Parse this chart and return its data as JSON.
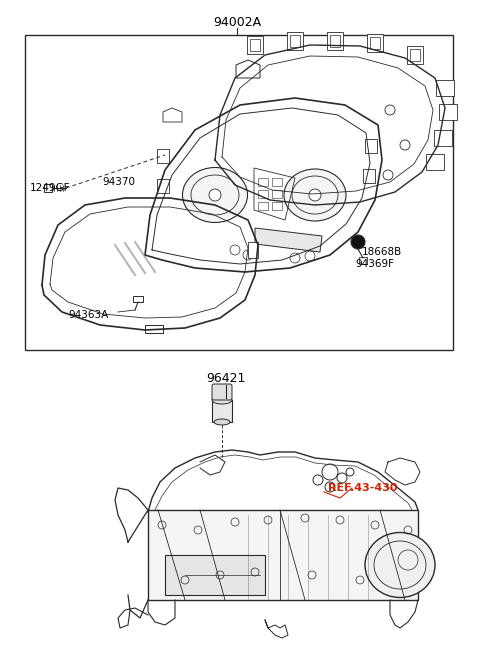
{
  "bg_color": "#ffffff",
  "line_color": "#2a2a2a",
  "label_color": "#000000",
  "ref_label_color": "#cc2200",
  "title": "94002A",
  "label_96421": "96421",
  "label_ref": "REF.43-430",
  "label_1249GF": "1249GF",
  "label_94370": "94370",
  "label_94363A": "94363A",
  "label_18668B": "18668B",
  "label_94369F": "94369F",
  "figsize": [
    4.8,
    6.56
  ],
  "dpi": 100
}
